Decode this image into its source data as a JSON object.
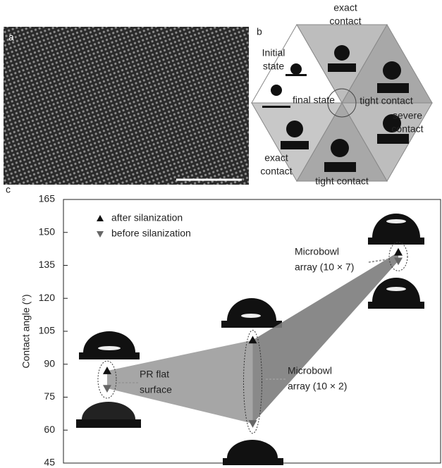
{
  "panel_a": {
    "label": "a"
  },
  "panel_b": {
    "label": "b",
    "labels": [
      [
        "exact",
        "contact"
      ],
      [
        "Initial",
        "state"
      ],
      [
        "final state"
      ],
      [
        "tight contact"
      ],
      [
        "severe",
        "contact"
      ],
      [
        "exact",
        "contact"
      ],
      [
        "tight contact"
      ]
    ]
  },
  "chart_data": {
    "type": "scatter",
    "label": "c",
    "y_label": "Contact angle (°)",
    "x": [
      1,
      2,
      3
    ],
    "xlim": [
      0.7,
      3.3
    ],
    "ylim": [
      45,
      165
    ],
    "yticks": [
      45,
      60,
      75,
      90,
      105,
      120,
      135,
      150,
      165
    ],
    "series": [
      {
        "name": "after silanization",
        "color": "#111111",
        "marker": "triangle-up",
        "values": [
          87,
          101,
          141
        ]
      },
      {
        "name": "before silanization",
        "color": "#666666",
        "marker": "triangle-down",
        "values": [
          79,
          63,
          137
        ]
      }
    ],
    "fill_colors": [
      "#9c9c9c",
      "#7c7c7c"
    ],
    "annotations": [
      [
        "PR flat",
        "surface"
      ],
      [
        "Microbowl",
        "array (10 × 2)"
      ],
      [
        "Microbowl",
        "array (10 × 7)"
      ]
    ]
  }
}
